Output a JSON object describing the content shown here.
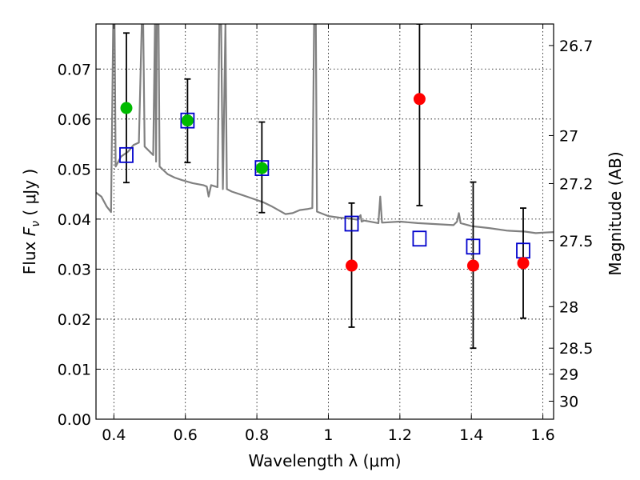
{
  "chart_data": {
    "type": "scatter",
    "xlabel": "Wavelength  λ (μm)",
    "ylabel": "Flux  F_ν  ( μJy )",
    "ylabel_parts": {
      "before": "Flux  ",
      "symbol": "F",
      "subscript": "ν",
      "after": "  ( μJy )"
    },
    "y2label": "Magnitude (AB)",
    "xlim": [
      0.35,
      1.63
    ],
    "ylim": [
      0.0,
      0.079
    ],
    "grid": true,
    "x_ticks": [
      0.4,
      0.6,
      0.8,
      1.0,
      1.2,
      1.4,
      1.6
    ],
    "x_tick_labels": [
      "0.4",
      "0.6",
      "0.8",
      "1",
      "1.2",
      "1.4",
      "1.6"
    ],
    "y_ticks": [
      0.0,
      0.01,
      0.02,
      0.03,
      0.04,
      0.05,
      0.06,
      0.07
    ],
    "y_tick_labels": [
      "0.00",
      "0.01",
      "0.02",
      "0.03",
      "0.04",
      "0.05",
      "0.06",
      "0.07"
    ],
    "y2_ticks": [
      {
        "label": "26.7",
        "flux": 0.0747
      },
      {
        "label": "27",
        "flux": 0.0567
      },
      {
        "label": "27.2",
        "flux": 0.0471
      },
      {
        "label": "27.5",
        "flux": 0.0357
      },
      {
        "label": "28",
        "flux": 0.0225
      },
      {
        "label": "28.5",
        "flux": 0.0142
      },
      {
        "label": "29",
        "flux": 0.009
      },
      {
        "label": "30",
        "flux": 0.0036
      }
    ],
    "series": [
      {
        "kind": "observed-green",
        "color": "#00bb00",
        "points": [
          {
            "x": 0.435,
            "y": 0.0622,
            "err_lo": 0.0473,
            "err_hi": 0.0772
          },
          {
            "x": 0.606,
            "y": 0.0597,
            "err_lo": 0.0513,
            "err_hi": 0.068
          },
          {
            "x": 0.814,
            "y": 0.0502,
            "err_lo": 0.0413,
            "err_hi": 0.0594
          }
        ]
      },
      {
        "kind": "observed-red",
        "color": "#ff0000",
        "points": [
          {
            "x": 1.065,
            "y": 0.0307,
            "err_lo": 0.0184,
            "err_hi": 0.0432
          },
          {
            "x": 1.255,
            "y": 0.064,
            "err_lo": 0.0427,
            "err_hi": 0.079
          },
          {
            "x": 1.405,
            "y": 0.0307,
            "err_lo": 0.0142,
            "err_hi": 0.0474
          },
          {
            "x": 1.545,
            "y": 0.0312,
            "err_lo": 0.0202,
            "err_hi": 0.0422
          }
        ]
      },
      {
        "kind": "model-blue-squares",
        "color": "#0000cc",
        "points": [
          {
            "x": 0.435,
            "y": 0.0528
          },
          {
            "x": 0.606,
            "y": 0.0597
          },
          {
            "x": 0.814,
            "y": 0.0502
          },
          {
            "x": 1.065,
            "y": 0.0391
          },
          {
            "x": 1.255,
            "y": 0.0361
          },
          {
            "x": 1.405,
            "y": 0.0345
          },
          {
            "x": 1.545,
            "y": 0.0337
          }
        ]
      }
    ],
    "sed_model": {
      "color": "#808080",
      "points": [
        [
          0.35,
          0.0453
        ],
        [
          0.365,
          0.0445
        ],
        [
          0.38,
          0.0425
        ],
        [
          0.392,
          0.0414
        ],
        [
          0.398,
          0.079
        ],
        [
          0.402,
          0.079
        ],
        [
          0.405,
          0.0505
        ],
        [
          0.42,
          0.0525
        ],
        [
          0.44,
          0.0535
        ],
        [
          0.455,
          0.0548
        ],
        [
          0.47,
          0.0553
        ],
        [
          0.478,
          0.079
        ],
        [
          0.482,
          0.079
        ],
        [
          0.486,
          0.0545
        ],
        [
          0.51,
          0.0528
        ],
        [
          0.515,
          0.079
        ],
        [
          0.518,
          0.0515
        ],
        [
          0.52,
          0.079
        ],
        [
          0.525,
          0.079
        ],
        [
          0.528,
          0.0505
        ],
        [
          0.55,
          0.049
        ],
        [
          0.57,
          0.0483
        ],
        [
          0.59,
          0.0478
        ],
        [
          0.62,
          0.0472
        ],
        [
          0.65,
          0.0468
        ],
        [
          0.66,
          0.0465
        ],
        [
          0.665,
          0.0445
        ],
        [
          0.672,
          0.0468
        ],
        [
          0.68,
          0.0466
        ],
        [
          0.69,
          0.0464
        ],
        [
          0.695,
          0.079
        ],
        [
          0.7,
          0.079
        ],
        [
          0.705,
          0.046
        ],
        [
          0.712,
          0.079
        ],
        [
          0.716,
          0.046
        ],
        [
          0.73,
          0.0455
        ],
        [
          0.76,
          0.0448
        ],
        [
          0.78,
          0.0443
        ],
        [
          0.8,
          0.0438
        ],
        [
          0.82,
          0.0433
        ],
        [
          0.84,
          0.0426
        ],
        [
          0.86,
          0.0418
        ],
        [
          0.88,
          0.041
        ],
        [
          0.9,
          0.0412
        ],
        [
          0.92,
          0.0418
        ],
        [
          0.94,
          0.042
        ],
        [
          0.955,
          0.0422
        ],
        [
          0.96,
          0.079
        ],
        [
          0.965,
          0.079
        ],
        [
          0.968,
          0.0415
        ],
        [
          1.0,
          0.0406
        ],
        [
          1.03,
          0.0403
        ],
        [
          1.06,
          0.0401
        ],
        [
          1.08,
          0.0399
        ],
        [
          1.09,
          0.0408
        ],
        [
          1.093,
          0.0395
        ],
        [
          1.1,
          0.0397
        ],
        [
          1.14,
          0.0392
        ],
        [
          1.145,
          0.0445
        ],
        [
          1.15,
          0.0393
        ],
        [
          1.2,
          0.0395
        ],
        [
          1.25,
          0.0392
        ],
        [
          1.3,
          0.039
        ],
        [
          1.35,
          0.0388
        ],
        [
          1.36,
          0.0395
        ],
        [
          1.365,
          0.0412
        ],
        [
          1.37,
          0.0392
        ],
        [
          1.4,
          0.0386
        ],
        [
          1.45,
          0.0382
        ],
        [
          1.5,
          0.0377
        ],
        [
          1.55,
          0.0375
        ],
        [
          1.58,
          0.0372
        ],
        [
          1.6,
          0.0373
        ],
        [
          1.63,
          0.0374
        ]
      ]
    }
  }
}
